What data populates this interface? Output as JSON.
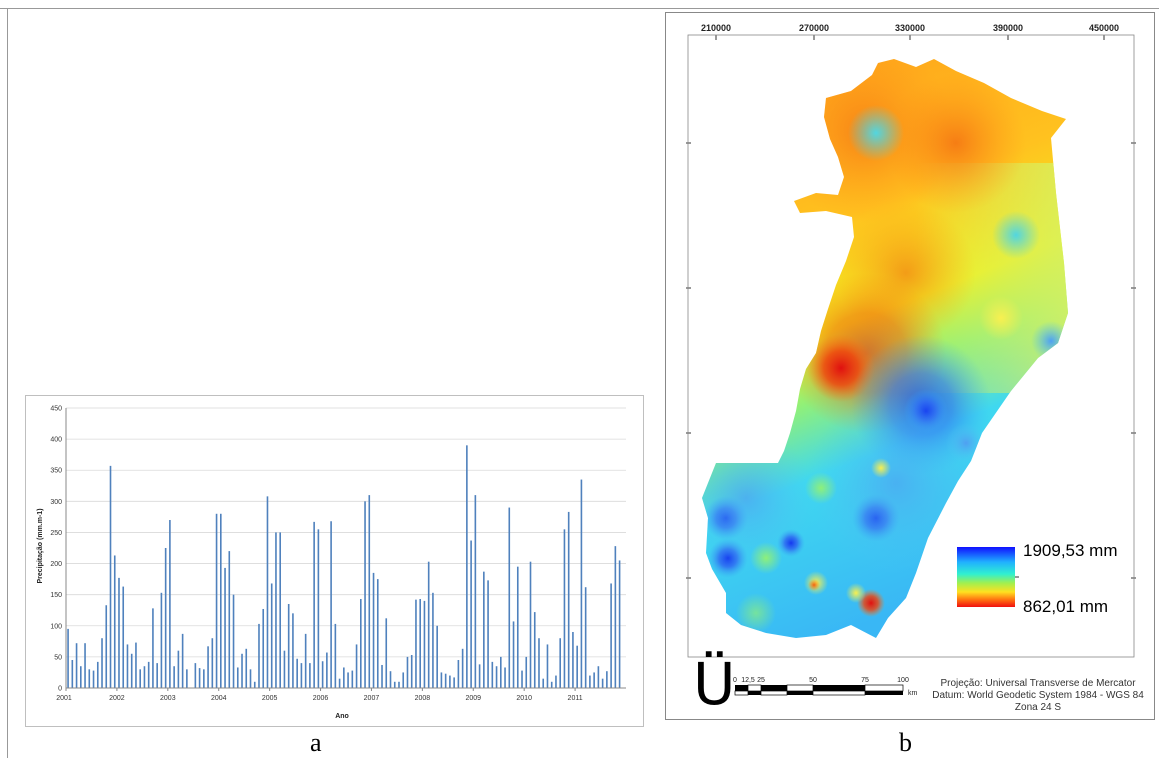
{
  "panels": {
    "a_label": "a",
    "b_label": "b"
  },
  "chart_data": {
    "type": "bar",
    "title": "",
    "xlabel": "Ano",
    "ylabel": "Precipitação (mm.m-1)",
    "ylim": [
      0,
      450
    ],
    "yticks": [
      0,
      50,
      100,
      150,
      200,
      250,
      300,
      350,
      400,
      450
    ],
    "year_labels": [
      "2001",
      "2002",
      "2003",
      "2004",
      "2005",
      "2006",
      "2007",
      "2008",
      "2009",
      "2010",
      "2011"
    ],
    "grid": true,
    "bar_color": "#4f81bd",
    "values": [
      95,
      45,
      72,
      35,
      72,
      30,
      28,
      42,
      80,
      133,
      357,
      213,
      177,
      163,
      70,
      55,
      73,
      30,
      35,
      42,
      128,
      40,
      153,
      225,
      270,
      35,
      60,
      87,
      30,
      0,
      40,
      32,
      30,
      67,
      80,
      280,
      280,
      193,
      220,
      150,
      33,
      55,
      63,
      30,
      10,
      103,
      127,
      308,
      168,
      250,
      250,
      60,
      135,
      120,
      47,
      40,
      87,
      40,
      267,
      255,
      43,
      57,
      268,
      103,
      15,
      33,
      25,
      28,
      70,
      143,
      300,
      310,
      185,
      175,
      37,
      112,
      27,
      10,
      10,
      25,
      50,
      53,
      142,
      143,
      140,
      203,
      153,
      100,
      25,
      23,
      20,
      17,
      45,
      63,
      390,
      237,
      310,
      38,
      187,
      173,
      42,
      35,
      50,
      33,
      290,
      107,
      195,
      28,
      50,
      203,
      122,
      80,
      15,
      70,
      10,
      20,
      80,
      255,
      283,
      90,
      68,
      335,
      162,
      20,
      25,
      35,
      15,
      27,
      168,
      228,
      205,
      0
    ]
  },
  "map": {
    "x_ticks": [
      "210000",
      "270000",
      "330000",
      "390000",
      "450000"
    ],
    "legend_max": "1909,53 mm",
    "legend_min": "862,01 mm",
    "north_symbol": "Ü",
    "scale_labels": [
      "0",
      "12,5",
      "25",
      "50",
      "75",
      "100"
    ],
    "scale_unit": "km",
    "projection_lines": [
      "Projeção: Universal Transverse de Mercator",
      "Datum: World Geodetic System 1984 - WGS 84",
      "Zona 24 S"
    ]
  }
}
